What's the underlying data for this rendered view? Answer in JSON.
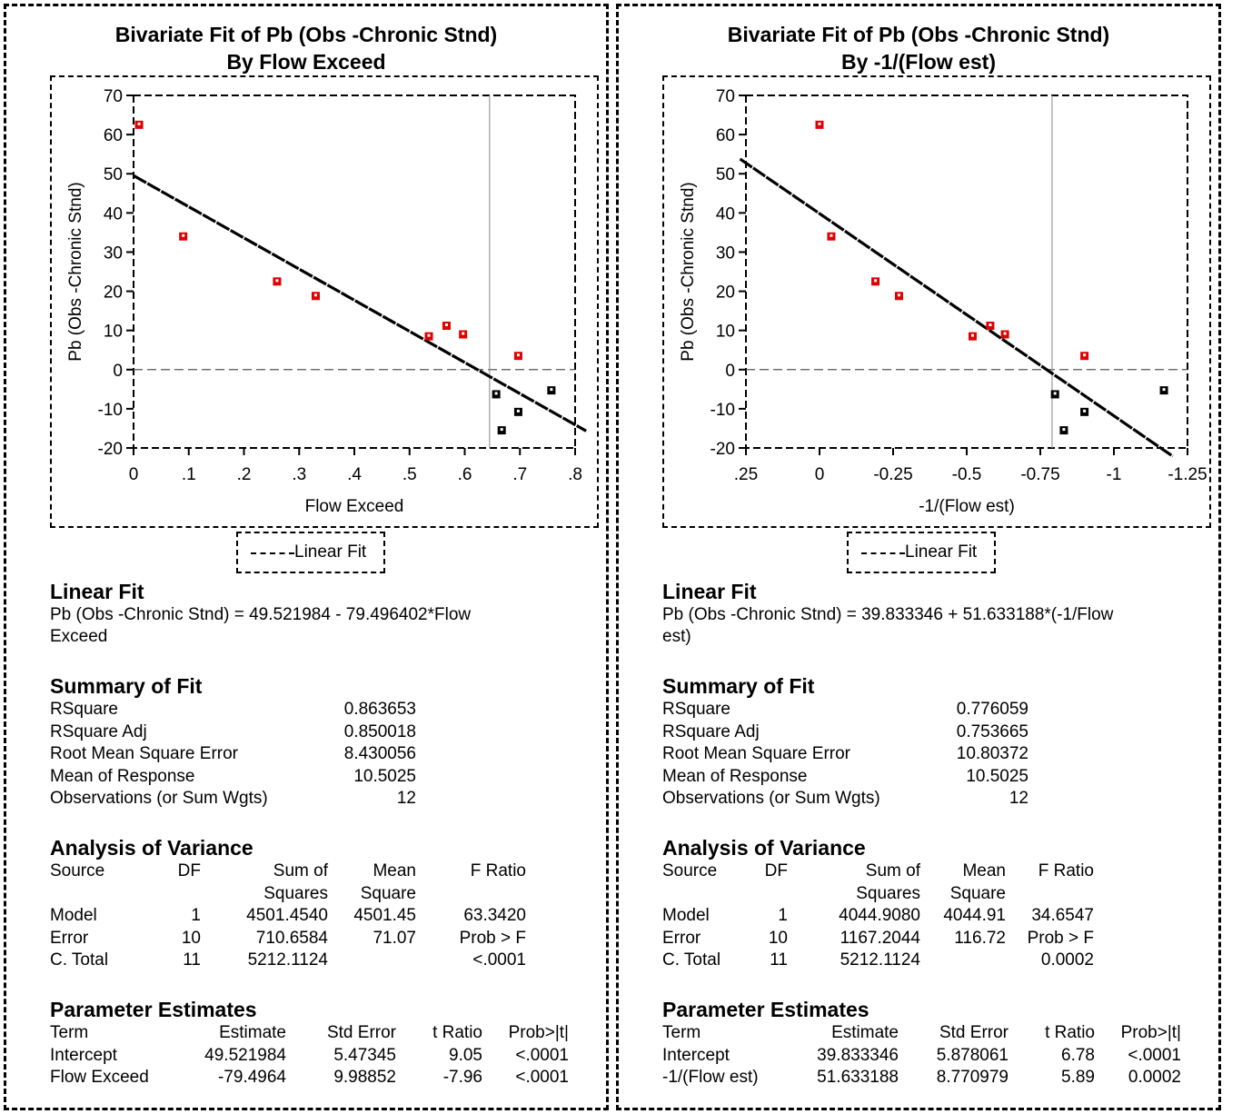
{
  "panels": [
    {
      "title_line1": "Bivariate Fit of Pb (Obs  -Chronic Stnd)",
      "title_line2": "By Flow Exceed",
      "legend_label": "Linear Fit",
      "linear_fit": {
        "heading": "Linear Fit",
        "equation_line1": "Pb (Obs -Chronic Stnd) = 49.521984 -  79.496402*Flow",
        "equation_line2": "Exceed"
      },
      "summary": {
        "heading": "Summary of Fit",
        "rows": [
          {
            "label": "RSquare",
            "value": "0.863653"
          },
          {
            "label": "RSquare Adj",
            "value": "0.850018"
          },
          {
            "label": "Root Mean Square Error",
            "value": "8.430056"
          },
          {
            "label": "Mean of Response",
            "value": "10.5025"
          },
          {
            "label": "Observations (or Sum Wgts)",
            "value": "12"
          }
        ]
      },
      "anova": {
        "heading": "Analysis of Variance",
        "headers": [
          "Source",
          "DF",
          "Sum of",
          "Mean",
          "F Ratio"
        ],
        "headers2": [
          "",
          "",
          "Squares",
          "Square",
          ""
        ],
        "rows": [
          [
            "Model",
            "1",
            "4501.4540",
            "4501.45",
            "63.3420"
          ],
          [
            "Error",
            "10",
            "710.6584",
            "71.07",
            "Prob > F"
          ],
          [
            "C. Total",
            "11",
            "5212.1124",
            "",
            "<.0001"
          ]
        ]
      },
      "params": {
        "heading": "Parameter Estimates",
        "headers": [
          "Term",
          "Estimate",
          "Std Error",
          "t Ratio",
          "Prob>|t|"
        ],
        "rows": [
          [
            "Intercept",
            "49.521984",
            "5.47345",
            "9.05",
            "<.0001"
          ],
          [
            "Flow Exceed",
            "-79.4964",
            "9.98852",
            "-7.96",
            "<.0001"
          ]
        ]
      }
    },
    {
      "title_line1": "Bivariate Fit of Pb (Obs  -Chronic Stnd)",
      "title_line2": "By -1/(Flow est)",
      "legend_label": "Linear Fit",
      "linear_fit": {
        "heading": "Linear Fit",
        "equation_line1": "Pb (Obs -Chronic Stnd) = 39.833346 + 51.633188*(-1/Flow",
        "equation_line2": "est)"
      },
      "summary": {
        "heading": "Summary of Fit",
        "rows": [
          {
            "label": "RSquare",
            "value": "0.776059"
          },
          {
            "label": "RSquare Adj",
            "value": "0.753665"
          },
          {
            "label": "Root Mean Square Error",
            "value": "10.80372"
          },
          {
            "label": "Mean of Response",
            "value": "10.5025"
          },
          {
            "label": "Observations (or Sum Wgts)",
            "value": "12"
          }
        ]
      },
      "anova": {
        "heading": "Analysis of Variance",
        "headers": [
          "Source",
          "DF",
          "Sum of",
          "Mean",
          "F Ratio"
        ],
        "headers2": [
          "",
          "",
          "Squares",
          "Square",
          ""
        ],
        "rows": [
          [
            "Model",
            "1",
            "4044.9080",
            "4044.91",
            "34.6547"
          ],
          [
            "Error",
            "10",
            "1167.2044",
            "116.72",
            "Prob > F"
          ],
          [
            "C. Total",
            "11",
            "5212.1124",
            "",
            "0.0002"
          ]
        ]
      },
      "params": {
        "heading": "Parameter Estimates",
        "headers": [
          "Term",
          "Estimate",
          "Std Error",
          "t Ratio",
          "Prob>|t|"
        ],
        "rows": [
          [
            "Intercept",
            "39.833346",
            "5.878061",
            "6.78",
            "<.0001"
          ],
          [
            "-1/(Flow est)",
            "51.633188",
            "8.770979",
            "5.89",
            "0.0002"
          ]
        ]
      }
    }
  ],
  "colors": {
    "above_marker": "#e00000",
    "below_marker": "#000000",
    "fit_line": "#000000",
    "ref_line": "#999999"
  },
  "chart_data": [
    {
      "type": "scatter",
      "title": "Bivariate Fit of Pb (Obs  -Chronic Stnd) By Flow Exceed",
      "xlabel": "Flow Exceed",
      "ylabel": "Pb (Obs -Chronic Stnd)",
      "xlim": [
        0,
        0.8
      ],
      "ylim": [
        -20,
        70
      ],
      "x_reversed": false,
      "xticks": [
        0,
        0.1,
        0.2,
        0.3,
        0.4,
        0.5,
        0.6,
        0.7,
        0.8
      ],
      "xtick_labels": [
        "0",
        ".1",
        ".2",
        ".3",
        ".4",
        ".5",
        ".6",
        ".7",
        ".8"
      ],
      "yticks": [
        -20,
        -10,
        0,
        10,
        20,
        30,
        40,
        50,
        60,
        70
      ],
      "ref_vline": 0.645,
      "ref_hline": 0,
      "fit": {
        "intercept": 49.521984,
        "slope": -79.496402,
        "x_range": [
          0,
          0.82
        ]
      },
      "points": [
        {
          "x": 0.01,
          "y": 62.5
        },
        {
          "x": 0.09,
          "y": 34
        },
        {
          "x": 0.26,
          "y": 22.5
        },
        {
          "x": 0.33,
          "y": 18.8
        },
        {
          "x": 0.535,
          "y": 8.5
        },
        {
          "x": 0.567,
          "y": 11.2
        },
        {
          "x": 0.597,
          "y": 9
        },
        {
          "x": 0.697,
          "y": 3.5
        },
        {
          "x": 0.657,
          "y": -6.3
        },
        {
          "x": 0.667,
          "y": -15.5
        },
        {
          "x": 0.697,
          "y": -10.8
        },
        {
          "x": 0.757,
          "y": -5.3
        }
      ]
    },
    {
      "type": "scatter",
      "title": "Bivariate Fit of Pb (Obs  -Chronic Stnd) By -1/(Flow est)",
      "xlabel": "-1/(Flow est)",
      "ylabel": "Pb (Obs -Chronic Stnd)",
      "xlim": [
        0.25,
        -1.25
      ],
      "ylim": [
        -20,
        70
      ],
      "x_reversed": true,
      "xticks": [
        0.25,
        0,
        -0.25,
        -0.5,
        -0.75,
        -1,
        -1.25
      ],
      "xtick_labels": [
        ".25",
        "0",
        "-0.25",
        "-0.5",
        "-0.75",
        "-1",
        "-1.25"
      ],
      "yticks": [
        -20,
        -10,
        0,
        10,
        20,
        30,
        40,
        50,
        60,
        70
      ],
      "ref_vline": -0.79,
      "ref_hline": 0,
      "fit": {
        "intercept": 39.833346,
        "slope": 51.633188,
        "x_range": [
          0.27,
          -1.2
        ]
      },
      "points": [
        {
          "x": 0,
          "y": 62.5
        },
        {
          "x": -0.04,
          "y": 34
        },
        {
          "x": -0.19,
          "y": 22.5
        },
        {
          "x": -0.27,
          "y": 18.8
        },
        {
          "x": -0.52,
          "y": 8.5
        },
        {
          "x": -0.58,
          "y": 11.2
        },
        {
          "x": -0.63,
          "y": 9
        },
        {
          "x": -0.9,
          "y": 3.5
        },
        {
          "x": -0.8,
          "y": -6.3
        },
        {
          "x": -0.83,
          "y": -15.5
        },
        {
          "x": -0.9,
          "y": -10.8
        },
        {
          "x": -1.17,
          "y": -5.3
        }
      ]
    }
  ]
}
